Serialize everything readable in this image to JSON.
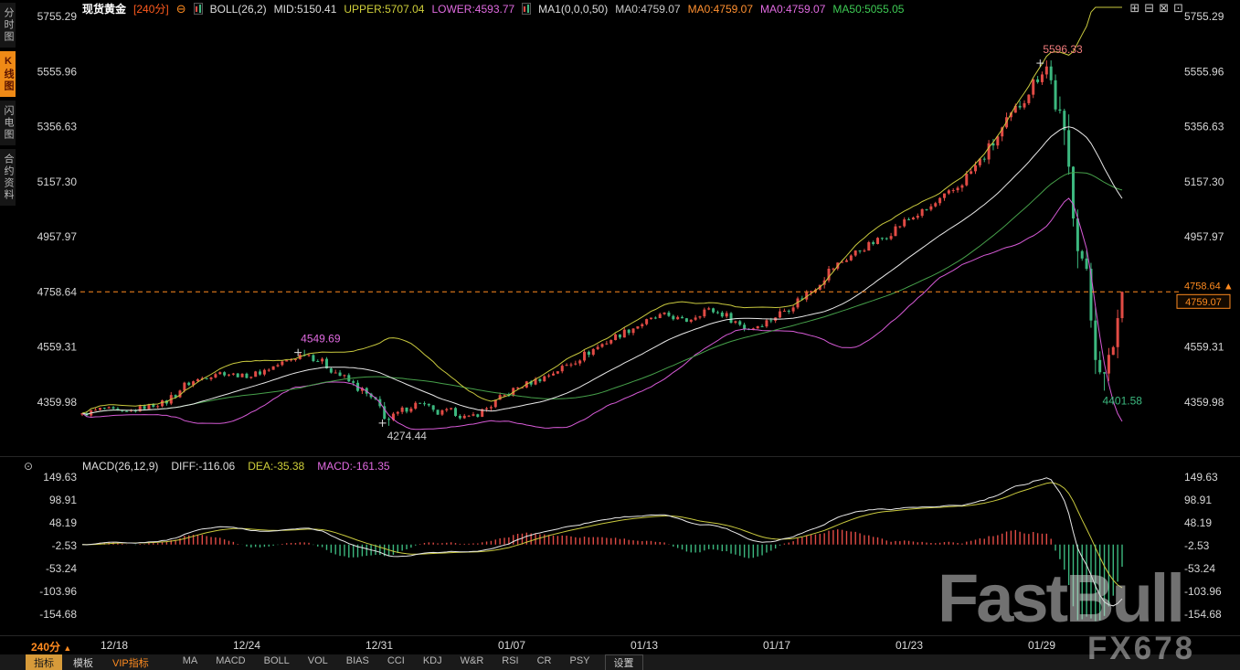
{
  "header": {
    "symbol": "现货黄金",
    "period": "[240分]",
    "minus_icon": "⊖",
    "boll": {
      "label": "BOLL(26,2)",
      "mid": "MID:5150.41",
      "upper": "UPPER:5707.04",
      "lower": "LOWER:4593.77"
    },
    "ma": {
      "label": "MA1(0,0,0,50)",
      "ma0_1": "MA0:4759.07",
      "ma0_2": "MA0:4759.07",
      "ma0_3": "MA0:4759.07",
      "ma50": "MA50:5055.05"
    },
    "window_icons": [
      "⊞",
      "⊟",
      "⊠",
      "⊡"
    ]
  },
  "sidebar": {
    "items": [
      {
        "label": "分时图",
        "active": false
      },
      {
        "label": "K线图",
        "active": true
      },
      {
        "label": "闪电图",
        "active": false
      },
      {
        "label": "合约资料",
        "active": false
      }
    ]
  },
  "macd_header": {
    "icon": "⊙",
    "label": "MACD(26,12,9)",
    "diff": "DIFF:-116.06",
    "dea": "DEA:-35.38",
    "macd": "MACD:-161.35"
  },
  "time_axis": {
    "period": "240分",
    "arrow": "▲",
    "labels": [
      "12/18",
      "12/24",
      "12/31",
      "01/07",
      "01/13",
      "01/17",
      "01/23",
      "01/29"
    ]
  },
  "toolbar": {
    "tabs": [
      {
        "label": "指标",
        "active": true,
        "vip": false
      },
      {
        "label": "模板",
        "active": false,
        "vip": false
      },
      {
        "label": "VIP指标",
        "active": false,
        "vip": true
      }
    ],
    "indicators": [
      "MA",
      "MACD",
      "BOLL",
      "VOL",
      "BIAS",
      "CCI",
      "KDJ",
      "W&R",
      "RSI",
      "CR",
      "PSY"
    ],
    "settings": "设置"
  },
  "watermark": {
    "brand": "FastBull",
    "sub": "FX678"
  },
  "chart_data": {
    "type": "candlestick+macd",
    "symbol": "现货黄金",
    "interval": "240分",
    "price_axis": [
      5755.29,
      5555.96,
      5356.63,
      5157.3,
      4957.97,
      4758.64,
      4559.31,
      4359.98
    ],
    "macd_axis": [
      149.63,
      98.91,
      48.19,
      -2.53,
      -53.24,
      -103.96,
      -154.68
    ],
    "current": {
      "price": 4759.07,
      "axis_label": "4758.64",
      "arrow": "▲"
    },
    "key_points": [
      {
        "label": "5596.33",
        "f": 0.927,
        "price": 5596.33,
        "type": "high",
        "color": "#ef7b7b",
        "cross": true
      },
      {
        "label": "4549.69",
        "f": 0.215,
        "price": 4549.69,
        "type": "high",
        "color": "#e06ae0",
        "cross": true
      },
      {
        "label": "4274.44",
        "f": 0.295,
        "price": 4274.44,
        "type": "low",
        "color": "#cccccc",
        "cross": true
      },
      {
        "label": "4401.58",
        "f": 0.985,
        "price": 4401.58,
        "type": "low",
        "color": "#3cb87f",
        "cross": false
      }
    ],
    "candles": {
      "count": 235,
      "last_close": 4759.07,
      "anchors": [
        [
          0,
          4315
        ],
        [
          0.02,
          4338
        ],
        [
          0.04,
          4320
        ],
        [
          0.06,
          4342
        ],
        [
          0.08,
          4360
        ],
        [
          0.1,
          4425
        ],
        [
          0.13,
          4468
        ],
        [
          0.16,
          4452
        ],
        [
          0.19,
          4498
        ],
        [
          0.215,
          4538
        ],
        [
          0.23,
          4505
        ],
        [
          0.25,
          4452
        ],
        [
          0.27,
          4398
        ],
        [
          0.285,
          4345
        ],
        [
          0.295,
          4295
        ],
        [
          0.31,
          4335
        ],
        [
          0.325,
          4360
        ],
        [
          0.34,
          4315
        ],
        [
          0.355,
          4332
        ],
        [
          0.37,
          4300
        ],
        [
          0.385,
          4328
        ],
        [
          0.4,
          4368
        ],
        [
          0.42,
          4415
        ],
        [
          0.445,
          4452
        ],
        [
          0.47,
          4502
        ],
        [
          0.49,
          4548
        ],
        [
          0.515,
          4602
        ],
        [
          0.54,
          4648
        ],
        [
          0.56,
          4678
        ],
        [
          0.58,
          4652
        ],
        [
          0.6,
          4698
        ],
        [
          0.62,
          4672
        ],
        [
          0.64,
          4622
        ],
        [
          0.66,
          4655
        ],
        [
          0.68,
          4705
        ],
        [
          0.7,
          4762
        ],
        [
          0.72,
          4842
        ],
        [
          0.745,
          4905
        ],
        [
          0.77,
          4955
        ],
        [
          0.79,
          5012
        ],
        [
          0.815,
          5062
        ],
        [
          0.84,
          5132
        ],
        [
          0.865,
          5238
        ],
        [
          0.885,
          5345
        ],
        [
          0.9,
          5430
        ],
        [
          0.92,
          5545
        ],
        [
          0.927,
          5580
        ],
        [
          0.935,
          5470
        ],
        [
          0.945,
          5270
        ],
        [
          0.955,
          5050
        ],
        [
          0.965,
          4790
        ],
        [
          0.975,
          4550
        ],
        [
          0.985,
          4430
        ],
        [
          0.99,
          4560
        ],
        [
          1,
          4750
        ]
      ]
    },
    "overlays": {
      "boll_period": 26,
      "boll_k": 2,
      "ma50_period": 50
    },
    "macd_params": {
      "fast": 12,
      "slow": 26,
      "signal": 9,
      "diff": -116.06,
      "dea": -35.38,
      "macd": -161.35
    }
  }
}
